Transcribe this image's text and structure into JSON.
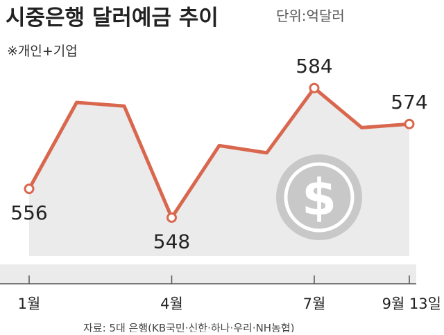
{
  "chart_data": {
    "type": "line",
    "title": "시중은행 달러예금 추이",
    "unit": "단위:억달러",
    "note": "※개인+기업",
    "source": "자료: 5대 은행(KB국민·신한·하나·우리·NH농협)",
    "categories": [
      "1월",
      null,
      null,
      "4월",
      null,
      null,
      "7월",
      null,
      "9월 13일"
    ],
    "series": [
      {
        "name": "달러예금",
        "color": "#d9674e",
        "values": [
          556,
          580,
          579,
          548,
          568,
          566,
          584,
          573,
          574
        ],
        "value_labels": [
          "556",
          null,
          null,
          "548",
          null,
          null,
          "584",
          null,
          "574"
        ]
      }
    ],
    "ylim": [
      540,
      590
    ]
  }
}
